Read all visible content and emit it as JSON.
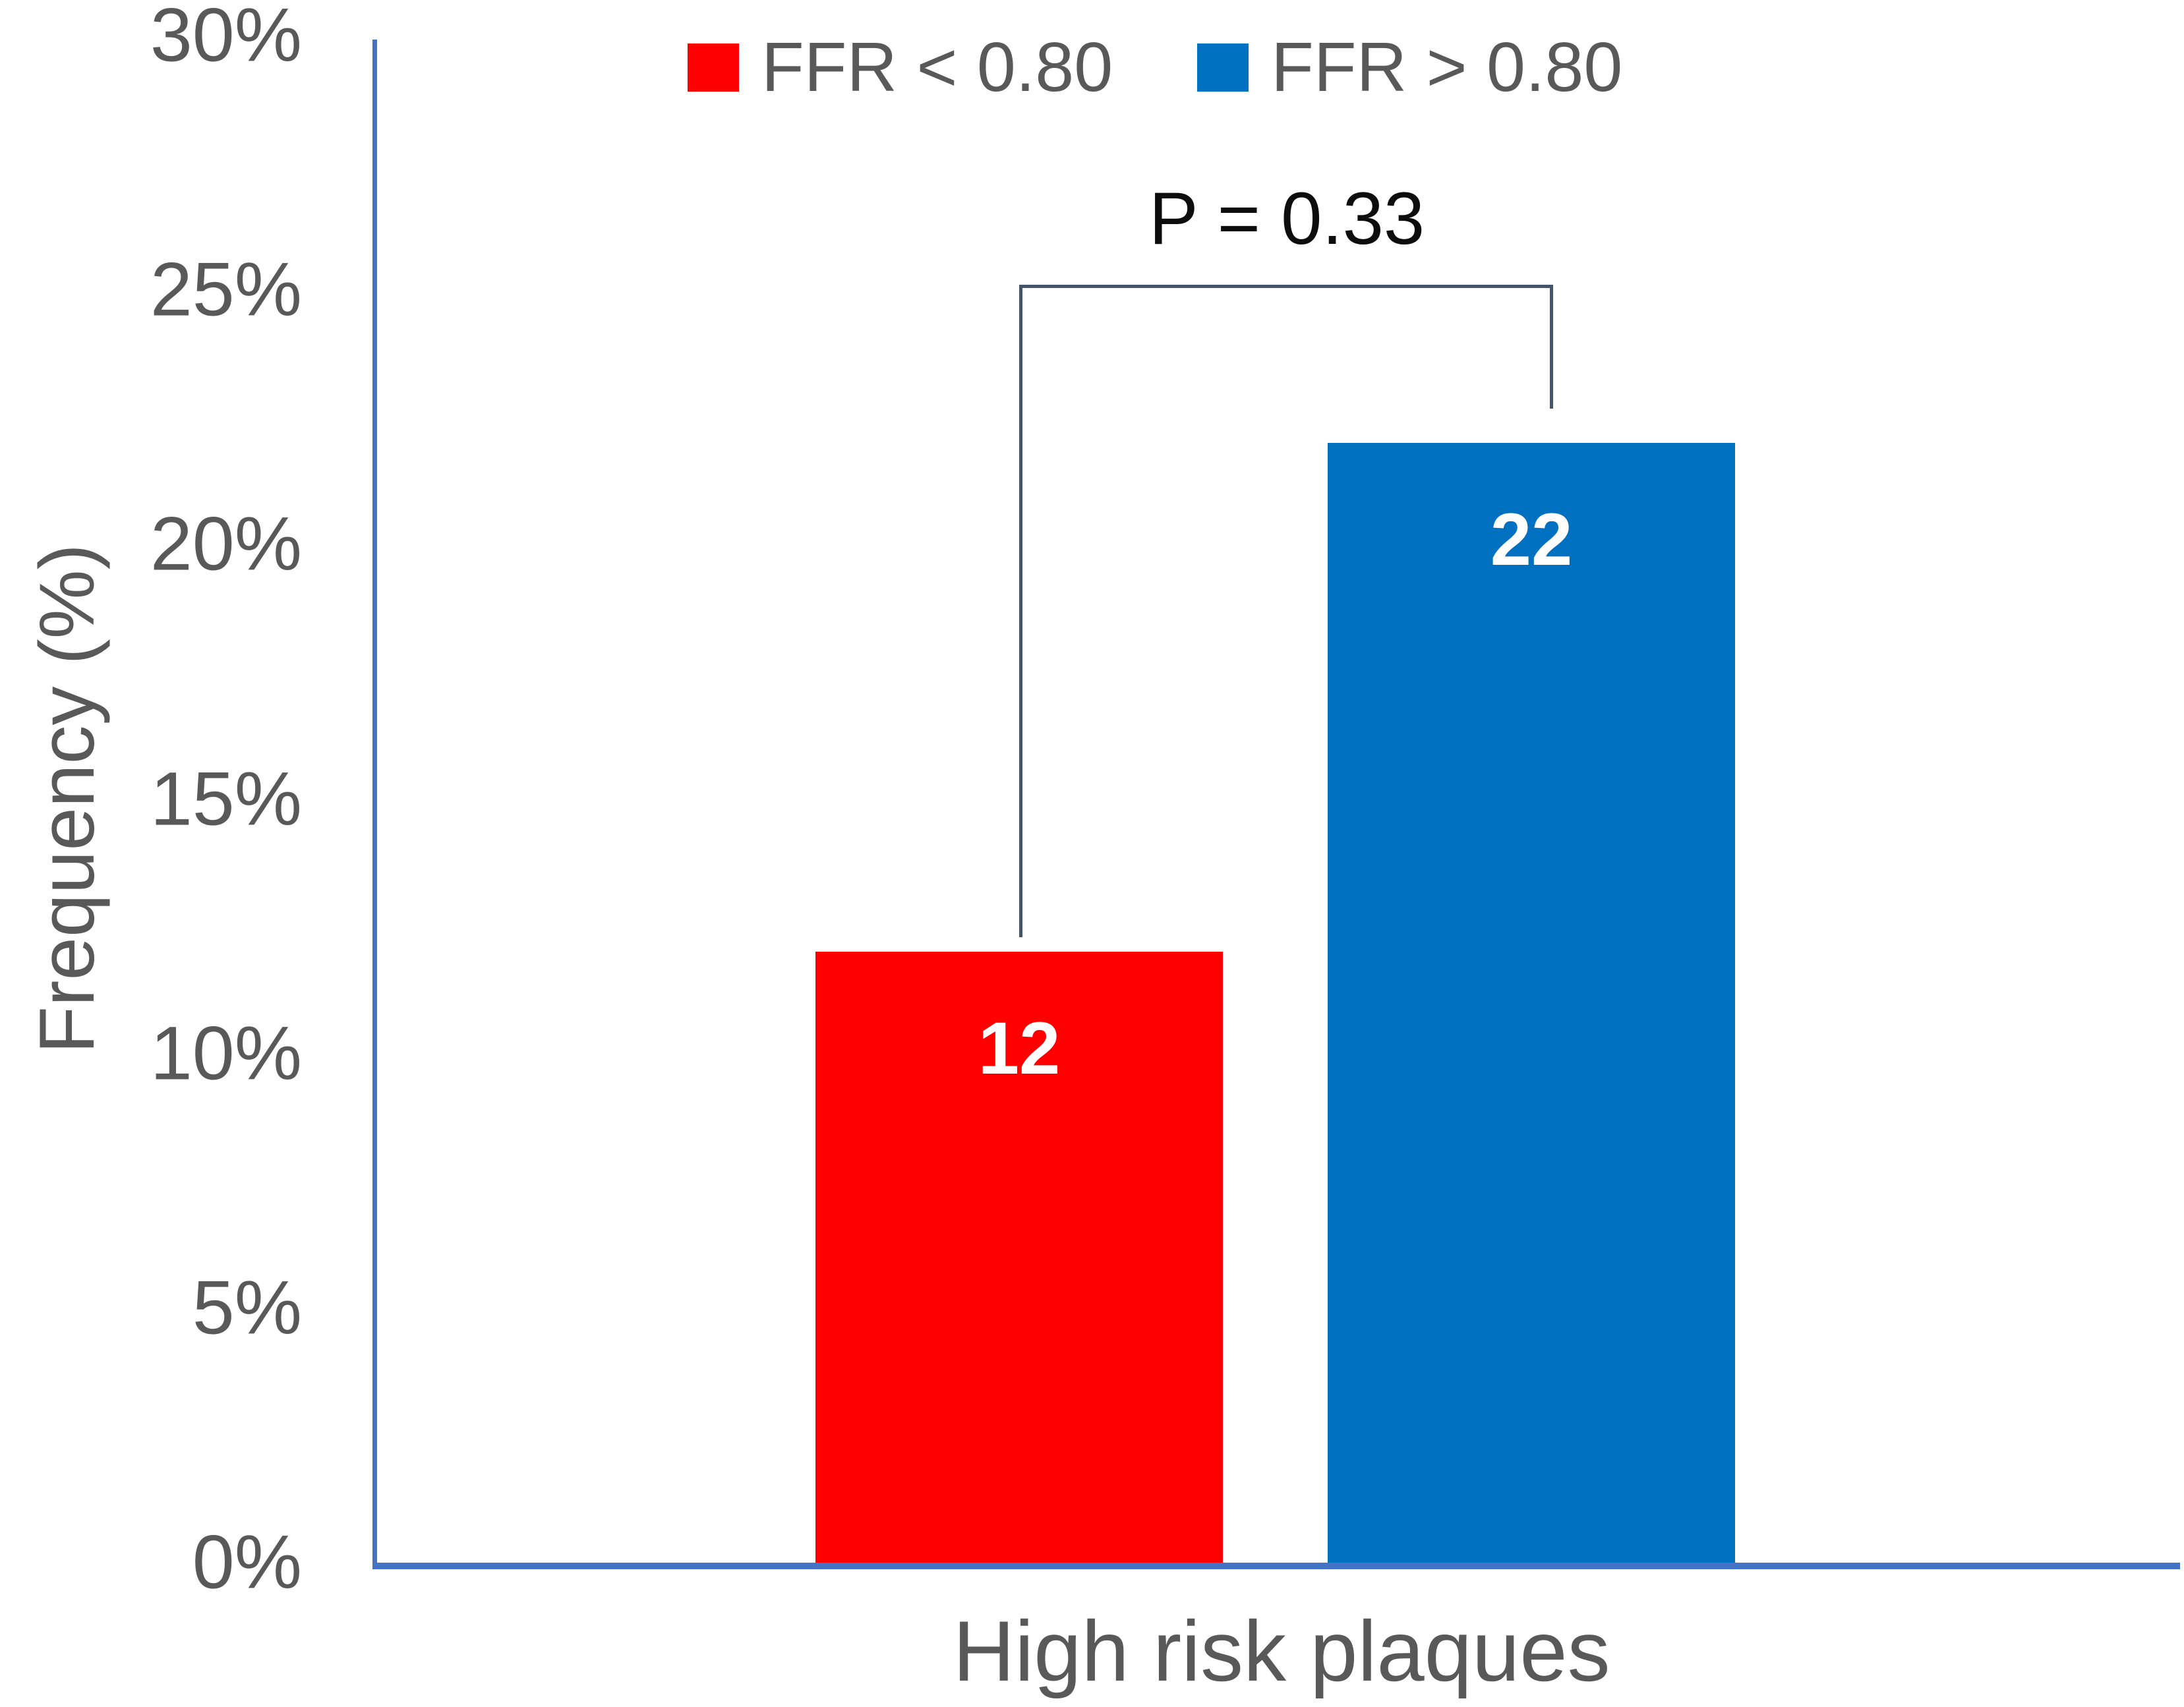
{
  "chart_data": {
    "type": "bar",
    "title": "",
    "categories": [
      "High risk plaques"
    ],
    "series": [
      {
        "name": "FFR < 0.80",
        "color": "#FF0000",
        "values": [
          12
        ],
        "data_label": "12"
      },
      {
        "name": "FFR > 0.80",
        "color": "#0070C0",
        "values": [
          22
        ],
        "data_label": "22"
      }
    ],
    "xlabel": "High risk plaques",
    "ylabel": "Frequency (%)",
    "ylim": [
      0,
      30
    ],
    "yticks": [
      {
        "value": 0,
        "label": "0%"
      },
      {
        "value": 5,
        "label": "5%"
      },
      {
        "value": 10,
        "label": "10%"
      },
      {
        "value": 15,
        "label": "15%"
      },
      {
        "value": 20,
        "label": "20%"
      },
      {
        "value": 25,
        "label": "25%"
      },
      {
        "value": 30,
        "label": "30%"
      }
    ],
    "grid": false,
    "legend_position": "top",
    "annotation": {
      "text": "P = 0.33"
    }
  },
  "colors": {
    "background": "#FFFFFF",
    "axis_line": "#4472C4",
    "bracket": "#44546A",
    "tick_text": "#595959",
    "axis_title_text": "#595959",
    "annotation_text": "#0D0D0D",
    "data_label_text": "#FFFFFF"
  }
}
